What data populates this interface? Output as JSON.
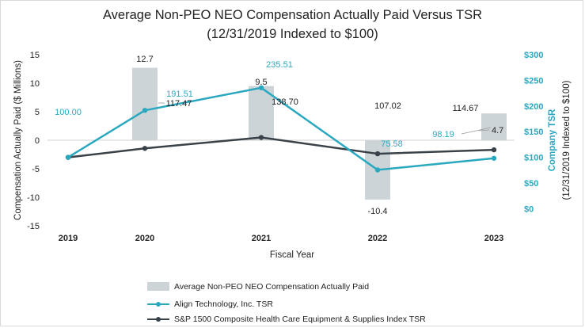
{
  "chart_data": {
    "type": "bar+line",
    "title": "Average Non-PEO NEO Compensation Actually Paid Versus TSR",
    "subtitle": "(12/31/2019 Indexed to $100)",
    "xlabel": "Fiscal Year",
    "ylabel": "Compensation Actually Paid ($ Millions)",
    "y2label_line1": "Company TSR",
    "y2label_line2": "(12/31/2019 Indexed to $100)",
    "categories": [
      "2019",
      "2020",
      "2021",
      "2022",
      "2023"
    ],
    "ylim": [
      -15,
      15
    ],
    "y_ticks": [
      15,
      10,
      5,
      0,
      -5,
      -10,
      -15
    ],
    "y2lim": [
      -33.3,
      300
    ],
    "y2_ticks": [
      "$300",
      "$250",
      "$200",
      "$150",
      "$100",
      "$50",
      "$0"
    ],
    "series": [
      {
        "name": "Average Non-PEO NEO Compensation Actually Paid",
        "kind": "bar",
        "axis": "left",
        "color": "#ccd4d8",
        "values": [
          null,
          12.7,
          9.5,
          -10.4,
          4.7
        ],
        "labels": [
          "",
          "12.7",
          "9.5",
          "-10.4",
          "4.7"
        ]
      },
      {
        "name": "Align Technology, Inc. TSR",
        "kind": "line",
        "axis": "right",
        "color": "#2aa8c0",
        "values": [
          100.0,
          191.51,
          235.51,
          75.58,
          98.19
        ],
        "labels": [
          "100.00",
          "191.51",
          "235.51",
          "75.58",
          "98.19"
        ]
      },
      {
        "name": "S&P 1500 Composite Health Care Equipment & Supplies Index TSR",
        "kind": "line",
        "axis": "right",
        "color": "#3a4249",
        "values": [
          100.0,
          117.47,
          138.7,
          107.02,
          114.67
        ],
        "labels": [
          "100.00",
          "117.47",
          "138.70",
          "107.02",
          "114.67"
        ]
      }
    ],
    "legend_position": "bottom"
  },
  "colors": {
    "axis_teal": "#2aa8c0",
    "zero_line": "#d0d0d0"
  }
}
